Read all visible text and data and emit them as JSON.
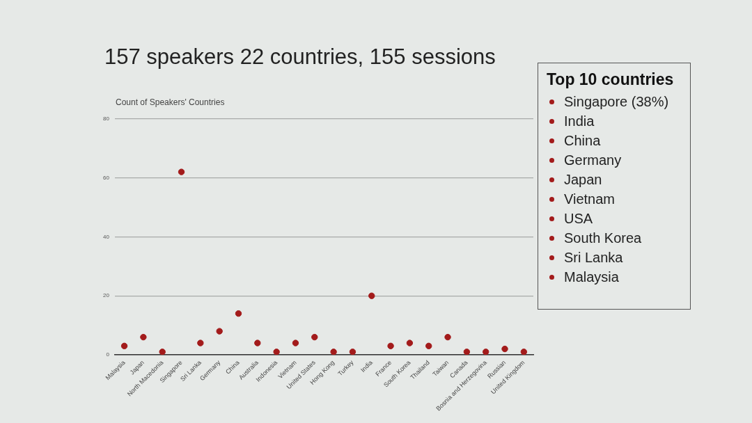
{
  "chart_data": [
    {
      "type": "scatter",
      "title": "157 speakers 22 countries, 155 sessions",
      "subtitle": "Count of Speakers' Countries",
      "categories": [
        "Malaysia",
        "Japan",
        "North Macedonia",
        "Singapore",
        "Sri Lanka",
        "Germany",
        "China",
        "Australia",
        "Indonesia",
        "Vietnam",
        "United States",
        "Hong Kong",
        "Turkey",
        "India",
        "France",
        "South Korea",
        "Thailand",
        "Taiwan",
        "Canada",
        "Bosnia and Herzegovina",
        "Russian",
        "United Kingdom"
      ],
      "values": [
        3,
        6,
        1,
        62,
        4,
        8,
        14,
        4,
        1,
        4,
        6,
        1,
        1,
        20,
        3,
        4,
        3,
        6,
        1,
        1,
        2,
        1
      ],
      "color": "#a31b1b",
      "ylim": [
        0,
        80
      ],
      "yticks": [
        0,
        20,
        40,
        60,
        80
      ],
      "grid": "y",
      "legend": false,
      "marker": "circle"
    },
    {
      "type": "other",
      "title": "Top 10 countries",
      "annotations": [
        "Singapore (38%)",
        "India",
        "China",
        "Germany",
        "Japan",
        "Vietnam",
        "USA",
        "South Korea",
        "Sri Lanka",
        "Malaysia"
      ]
    }
  ]
}
